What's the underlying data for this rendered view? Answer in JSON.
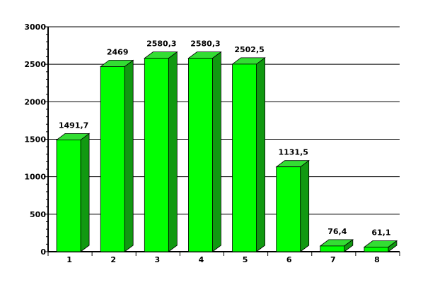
{
  "chart_data": {
    "type": "bar",
    "title": "",
    "xlabel": "",
    "ylabel": "",
    "categories": [
      "1",
      "2",
      "3",
      "4",
      "5",
      "6",
      "7",
      "8"
    ],
    "values": [
      1491.7,
      2469,
      2580.3,
      2580.3,
      2502.5,
      1131.5,
      76.4,
      61.1
    ],
    "value_labels": [
      "1491,7",
      "2469",
      "2580,3",
      "2580,3",
      "2502,5",
      "1131,5",
      "76,4",
      "61,1"
    ],
    "ylim": [
      0,
      3000
    ],
    "yticks": [
      0,
      500,
      1000,
      1500,
      2000,
      2500,
      3000
    ],
    "ytick_labels": [
      "0",
      "500",
      "1000",
      "1500",
      "2000",
      "2500",
      "3000"
    ],
    "grid": true,
    "bar_style": "3d",
    "colors": {
      "front": "#00ff00",
      "top": "#33dd33",
      "side": "#119911",
      "outline": "#000000",
      "grid": "#000000"
    }
  }
}
